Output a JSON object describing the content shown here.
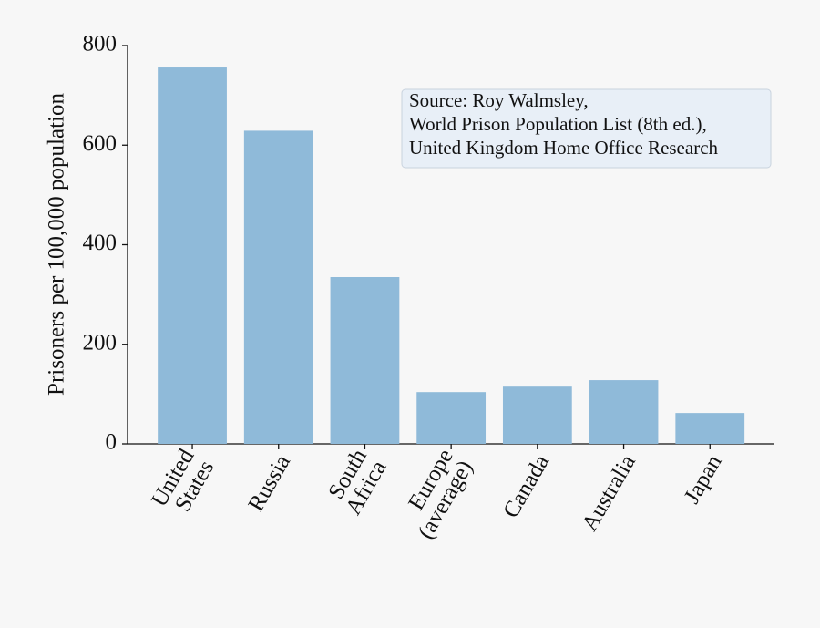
{
  "chart_data": {
    "type": "bar",
    "ylabel": "Prisoners per 100,000 population",
    "categories": [
      "United\nStates",
      "Russia",
      "South\nAfrica",
      "Europe\n(average)",
      "Canada",
      "Australia",
      "Japan"
    ],
    "values": [
      756,
      629,
      335,
      104,
      115,
      128,
      62
    ],
    "color": "#8fbad9",
    "ylim": [
      0,
      800
    ],
    "yticks": [
      0,
      200,
      400,
      600,
      800
    ],
    "grid": false,
    "annotation": [
      "Source: Roy Walmsley,",
      "World Prison Population List (8th ed.),",
      "United Kingdom Home Office Research"
    ]
  }
}
